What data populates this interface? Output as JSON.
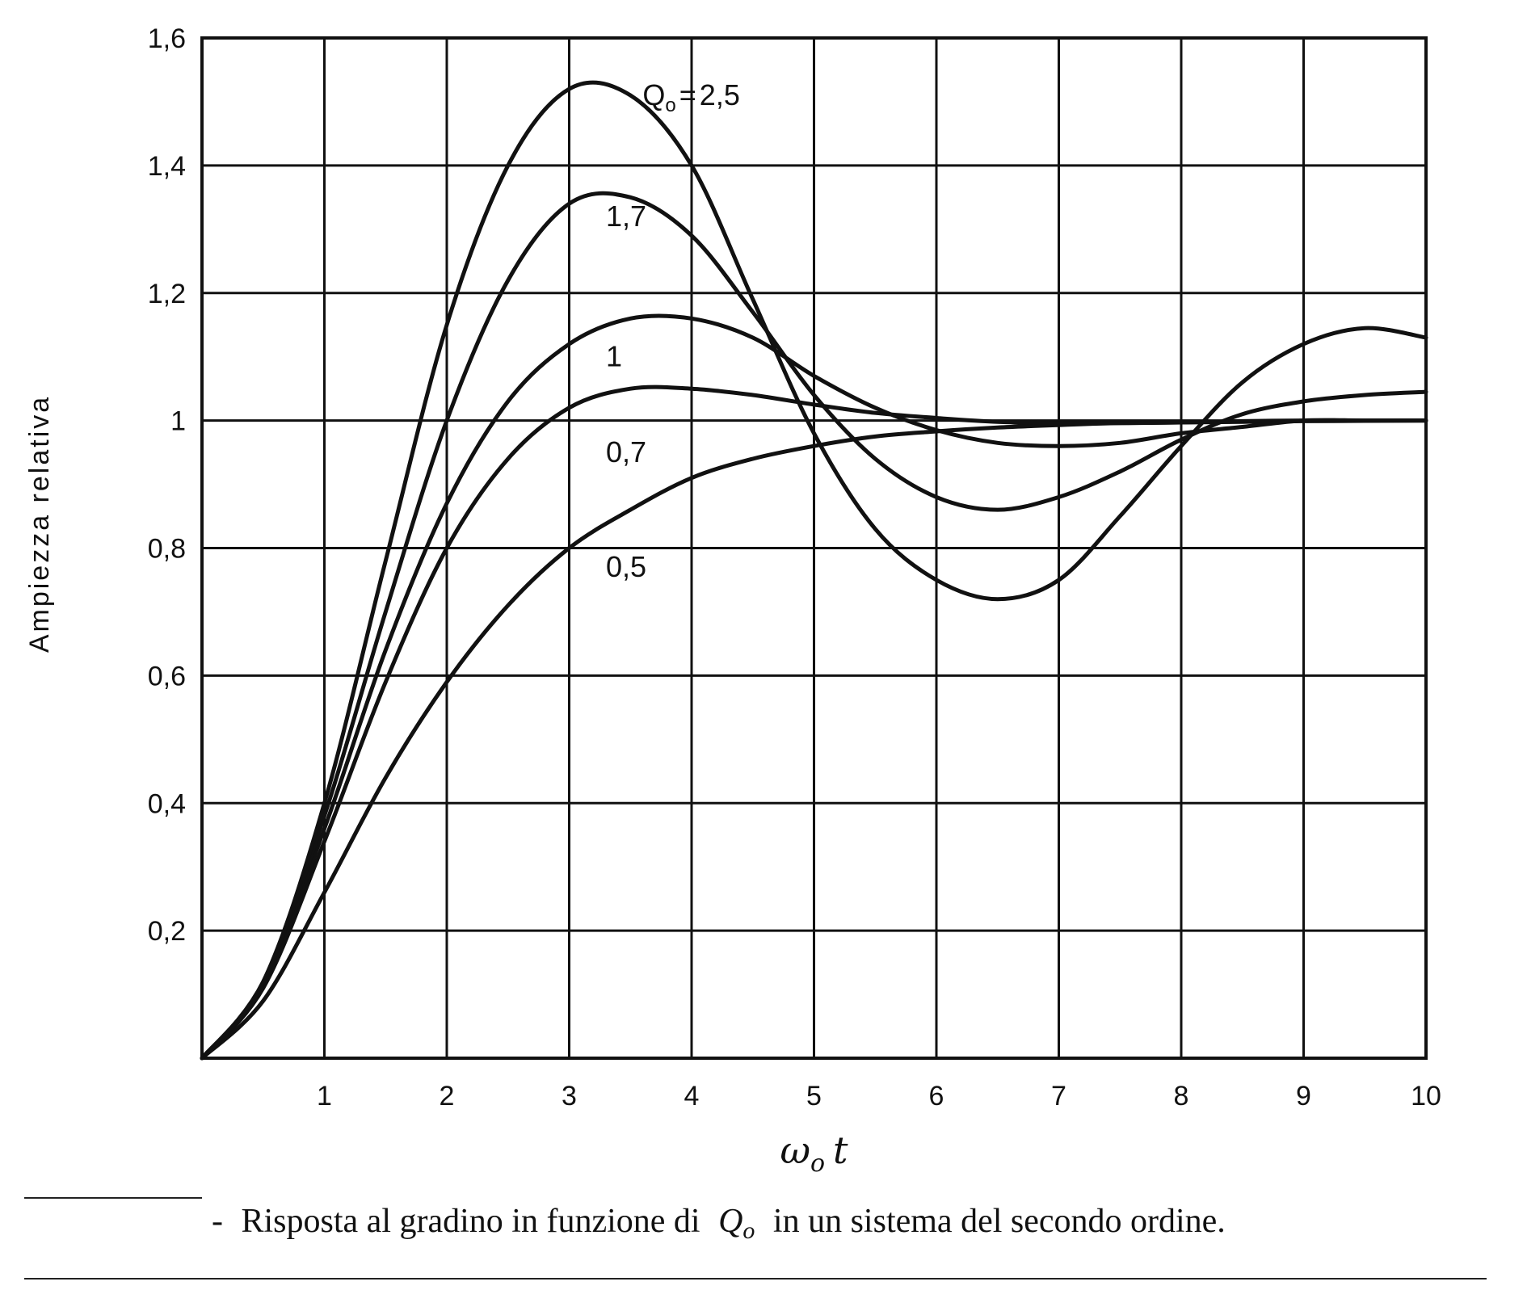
{
  "chart_data": {
    "type": "line",
    "title": "",
    "xlabel": "ω",
    "xlabel_sub": "o",
    "xlabel_var": "t",
    "ylabel": "Ampiezza relativa",
    "xlim": [
      0,
      10
    ],
    "ylim": [
      0,
      1.6
    ],
    "x_ticks": [
      {
        "value": 1,
        "label": "1"
      },
      {
        "value": 2,
        "label": "2"
      },
      {
        "value": 3,
        "label": "3"
      },
      {
        "value": 4,
        "label": "4"
      },
      {
        "value": 5,
        "label": "5"
      },
      {
        "value": 6,
        "label": "6"
      },
      {
        "value": 7,
        "label": "7"
      },
      {
        "value": 8,
        "label": "8"
      },
      {
        "value": 9,
        "label": "9"
      },
      {
        "value": 10,
        "label": "10"
      }
    ],
    "y_ticks": [
      {
        "value": 0.2,
        "label": "0,2"
      },
      {
        "value": 0.4,
        "label": "0,4"
      },
      {
        "value": 0.6,
        "label": "0,6"
      },
      {
        "value": 0.8,
        "label": "0,8"
      },
      {
        "value": 1.0,
        "label": "1"
      },
      {
        "value": 1.2,
        "label": "1,2"
      },
      {
        "value": 1.4,
        "label": "1,4"
      },
      {
        "value": 1.6,
        "label": "1,6"
      }
    ],
    "grid": true,
    "color": "#111111",
    "series": [
      {
        "label": "0,5",
        "q": 0.5,
        "label_at": [
          3.3,
          0.77
        ],
        "x": [
          0,
          0.5,
          1,
          1.5,
          2,
          2.5,
          3,
          3.5,
          4,
          4.5,
          5,
          5.5,
          6,
          6.5,
          7,
          7.5,
          8,
          8.5,
          9,
          9.5,
          10
        ],
        "y": [
          0,
          0.09,
          0.26,
          0.44,
          0.59,
          0.71,
          0.8,
          0.86,
          0.91,
          0.94,
          0.96,
          0.975,
          0.983,
          0.989,
          0.993,
          0.996,
          0.997,
          0.998,
          0.999,
          0.9995,
          1.0
        ]
      },
      {
        "label": "0,7",
        "q": 0.7,
        "label_at": [
          3.3,
          0.95
        ],
        "x": [
          0,
          0.5,
          1,
          1.5,
          2,
          2.5,
          3,
          3.5,
          4,
          4.5,
          5,
          5.5,
          6,
          6.5,
          7,
          7.5,
          8,
          8.5,
          9,
          9.5,
          10
        ],
        "y": [
          0,
          0.11,
          0.34,
          0.59,
          0.8,
          0.94,
          1.02,
          1.05,
          1.05,
          1.04,
          1.025,
          1.012,
          1.004,
          0.998,
          0.996,
          0.996,
          0.997,
          0.999,
          1.0,
          1.0,
          1.0
        ]
      },
      {
        "label": "1",
        "q": 1,
        "label_at": [
          3.3,
          1.1
        ],
        "x": [
          0,
          0.5,
          1,
          1.5,
          2,
          2.5,
          3,
          3.5,
          4,
          4.5,
          5,
          5.5,
          6,
          6.5,
          7,
          7.5,
          8,
          8.5,
          9,
          9.5,
          10
        ],
        "y": [
          0,
          0.115,
          0.36,
          0.64,
          0.87,
          1.03,
          1.12,
          1.16,
          1.16,
          1.13,
          1.07,
          1.02,
          0.985,
          0.965,
          0.96,
          0.965,
          0.98,
          0.99,
          1.0,
          1.0,
          1.0
        ]
      },
      {
        "label": "1,7",
        "q": 1.7,
        "label_at": [
          3.3,
          1.32
        ],
        "x": [
          0,
          0.5,
          1,
          1.5,
          2,
          2.5,
          3,
          3.5,
          4,
          4.5,
          5,
          5.5,
          6,
          6.5,
          7,
          7.5,
          8,
          8.5,
          9,
          9.5,
          10
        ],
        "y": [
          0,
          0.12,
          0.38,
          0.7,
          1.0,
          1.22,
          1.34,
          1.35,
          1.29,
          1.17,
          1.04,
          0.94,
          0.88,
          0.86,
          0.88,
          0.92,
          0.97,
          1.01,
          1.03,
          1.04,
          1.045
        ]
      },
      {
        "label": "2,5",
        "q": 2.5,
        "label_at": [
          3.6,
          1.51
        ],
        "x": [
          0,
          0.5,
          1,
          1.5,
          2,
          2.5,
          3,
          3.5,
          4,
          4.5,
          5,
          5.5,
          6,
          6.5,
          7,
          7.5,
          8,
          8.5,
          9,
          9.5,
          10
        ],
        "y": [
          0,
          0.12,
          0.4,
          0.78,
          1.15,
          1.4,
          1.52,
          1.51,
          1.4,
          1.19,
          0.98,
          0.83,
          0.75,
          0.72,
          0.75,
          0.85,
          0.96,
          1.06,
          1.12,
          1.145,
          1.13
        ]
      }
    ],
    "series_label_prefix": "Q",
    "series_label_prefix_sub": "o",
    "series_label_prefix_eq": "="
  },
  "caption": {
    "dash": "-",
    "text_before": "Risposta al gradino in funzione di",
    "symbol": "Q",
    "symbol_sub": "o",
    "text_after": "in un sistema del secondo ordine."
  }
}
